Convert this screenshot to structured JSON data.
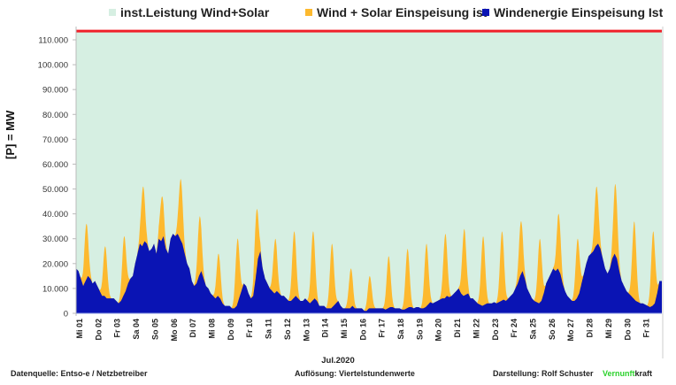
{
  "chart_data": {
    "type": "area",
    "title": "",
    "xlabel": "Jul.2020",
    "ylabel": "[P] =   MW",
    "ylim": [
      0,
      115000
    ],
    "y_ticks": [
      "0",
      "10.000",
      "20.000",
      "30.000",
      "40.000",
      "50.000",
      "60.000",
      "70.000",
      "80.000",
      "90.000",
      "100.000",
      "110.000"
    ],
    "y_tick_values": [
      0,
      10000,
      20000,
      30000,
      40000,
      50000,
      60000,
      70000,
      80000,
      90000,
      100000,
      110000
    ],
    "grid": true,
    "legend_position": "top",
    "x_tick_labels": [
      "Mi 01",
      "Do 02",
      "Fr 03",
      "Sa 04",
      "So 05",
      "Mo 06",
      "Di 07",
      "Mi 08",
      "Do 09",
      "Fr 10",
      "Sa 11",
      "So 12",
      "Mo 13",
      "Di 14",
      "Mi 15",
      "Do 16",
      "Fr 17",
      "Sa 18",
      "So 19",
      "Mo 20",
      "Di 21",
      "Mi 22",
      "Do 23",
      "Fr 24",
      "Sa 25",
      "So 26",
      "Mo 27",
      "Di 28",
      "Mi 29",
      "Do 30",
      "Fr 31"
    ],
    "x_resolution": "3h samples per day (8 per day), 31 days",
    "series": [
      {
        "name": "inst.Leistung Wind+Solar",
        "color": "#d6efe2",
        "values_constant": 113500
      },
      {
        "name": "Wind + Solar Einspeisung ist",
        "color": "#fdb92e",
        "daily_peak_mw": [
          36000,
          27000,
          31000,
          51000,
          47000,
          54000,
          39000,
          24000,
          30000,
          41000,
          30000,
          33000,
          33000,
          28000,
          18000,
          15000,
          23000,
          26000,
          28000,
          32000,
          34000,
          31000,
          33000,
          37000,
          30000,
          40000,
          30000,
          51000,
          52000,
          37000,
          33000
        ]
      },
      {
        "name": "Windenergie Einspeisung Ist",
        "color": "#0a14b4",
        "values_3h": [
          18000,
          17000,
          14000,
          11000,
          13000,
          15000,
          14000,
          12000,
          13000,
          11000,
          9000,
          7000,
          7000,
          6000,
          6000,
          6000,
          6000,
          5000,
          4000,
          5000,
          7000,
          9000,
          12000,
          14000,
          15000,
          20000,
          24000,
          28000,
          27000,
          29000,
          28000,
          25000,
          26000,
          28000,
          24000,
          30000,
          29000,
          31000,
          26000,
          24000,
          30000,
          32000,
          31000,
          32000,
          30000,
          28000,
          24000,
          20000,
          18000,
          13000,
          11000,
          12000,
          15000,
          17000,
          14000,
          11000,
          10000,
          8000,
          7000,
          6000,
          7000,
          6000,
          4000,
          3000,
          3000,
          3000,
          2000,
          2000,
          3000,
          6000,
          9000,
          12000,
          11000,
          8000,
          6000,
          7000,
          14000,
          22000,
          25000,
          18000,
          14000,
          12000,
          10000,
          9000,
          8000,
          9000,
          8000,
          7000,
          7000,
          6000,
          5000,
          5000,
          6000,
          7000,
          6000,
          5000,
          5000,
          6000,
          5000,
          4000,
          5000,
          6000,
          5000,
          3000,
          3000,
          3000,
          2000,
          2000,
          2000,
          3000,
          4000,
          5000,
          3000,
          2000,
          2000,
          2000,
          2000,
          3000,
          2000,
          2000,
          2000,
          2000,
          1000,
          1000,
          2000,
          2000,
          2000,
          2000,
          2000,
          2000,
          2000,
          1500,
          2000,
          2500,
          2500,
          2000,
          2000,
          2000,
          1500,
          1500,
          2000,
          2500,
          2500,
          2000,
          2500,
          2500,
          2000,
          2000,
          2500,
          3500,
          4500,
          4000,
          4500,
          5000,
          5500,
          6000,
          6000,
          7000,
          6500,
          7000,
          8000,
          9000,
          10000,
          8000,
          7000,
          7500,
          8000,
          6000,
          6000,
          5000,
          4000,
          3500,
          3000,
          3500,
          4000,
          4000,
          4000,
          4500,
          4000,
          4500,
          5000,
          5500,
          5000,
          6000,
          7000,
          8000,
          10000,
          12000,
          15000,
          17000,
          14000,
          10000,
          8000,
          6000,
          5000,
          4500,
          4000,
          5000,
          8000,
          12000,
          14000,
          16000,
          18000,
          17000,
          18000,
          16000,
          12000,
          9000,
          7000,
          6000,
          5000,
          5000,
          6000,
          8000,
          12000,
          16000,
          20000,
          23000,
          24000,
          25000,
          27000,
          28000,
          26000,
          22000,
          18000,
          16000,
          18000,
          22000,
          24000,
          22000,
          17000,
          13000,
          11000,
          9000,
          8000,
          7000,
          6000,
          5000,
          4500,
          4000,
          4000,
          3500,
          3000,
          2500,
          3000,
          4000,
          8000,
          13000
        ]
      }
    ]
  },
  "legend": {
    "items": [
      {
        "label": "inst.Leistung Wind+Solar",
        "color": "#d6efe2"
      },
      {
        "label": "Wind + Solar Einspeisung ist",
        "color": "#fdb92e"
      },
      {
        "label": "Windenergie Einspeisung Ist",
        "color": "#0a14b4"
      }
    ]
  },
  "footer": {
    "source": "Datenquelle:  Entso-e  / Netzbetreiber",
    "resolution": "Auflösung: Viertelstundenwerte",
    "author_prefix": "Darstellung:  Rolf Schuster",
    "brand_green": "Vernunft",
    "brand_rest": "kraft"
  },
  "colors": {
    "installed_line": "#f0202a",
    "installed_fill": "#d6efe2",
    "total_fill": "#fdb92e",
    "wind_fill": "#0a14b4",
    "brand_green": "#2bd12b"
  }
}
